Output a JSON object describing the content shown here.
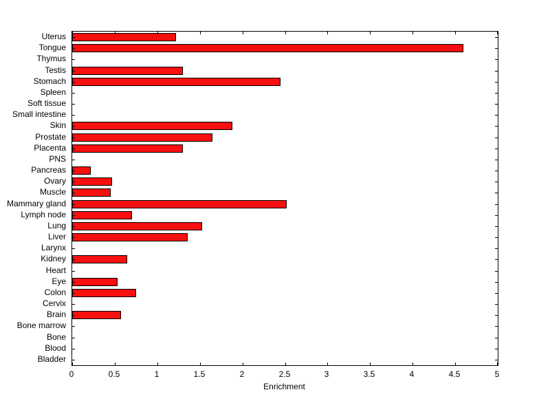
{
  "chart_data": {
    "type": "bar",
    "orientation": "horizontal",
    "title": "",
    "xlabel": "Enrichment",
    "ylabel": "",
    "xlim": [
      0,
      5
    ],
    "xticks": [
      0,
      0.5,
      1,
      1.5,
      2,
      2.5,
      3,
      3.5,
      4,
      4.5,
      5
    ],
    "xtick_labels": [
      "0",
      "0.5",
      "1",
      "1.5",
      "2",
      "2.5",
      "3",
      "3.5",
      "4",
      "4.5",
      "5"
    ],
    "categories_top_to_bottom": [
      "Uterus",
      "Tongue",
      "Thymus",
      "Testis",
      "Stomach",
      "Spleen",
      "Soft tissue",
      "Small intestine",
      "Skin",
      "Prostate",
      "Placenta",
      "PNS",
      "Pancreas",
      "Ovary",
      "Muscle",
      "Mammary gland",
      "Lymph node",
      "Lung",
      "Liver",
      "Larynx",
      "Kidney",
      "Heart",
      "Eye",
      "Colon",
      "Cervix",
      "Brain",
      "Bone marrow",
      "Bone",
      "Blood",
      "Bladder"
    ],
    "values": [
      1.22,
      4.6,
      0,
      1.3,
      2.45,
      0,
      0,
      0,
      1.88,
      1.65,
      1.3,
      0,
      0.22,
      0.47,
      0.45,
      2.52,
      0.7,
      1.53,
      1.36,
      0,
      0.65,
      0,
      0.53,
      0.75,
      0,
      0.57,
      0,
      0,
      0,
      0
    ],
    "bar_color": "#f80f0f",
    "bar_edge_color": "#000000",
    "grid": false,
    "legend": false
  }
}
